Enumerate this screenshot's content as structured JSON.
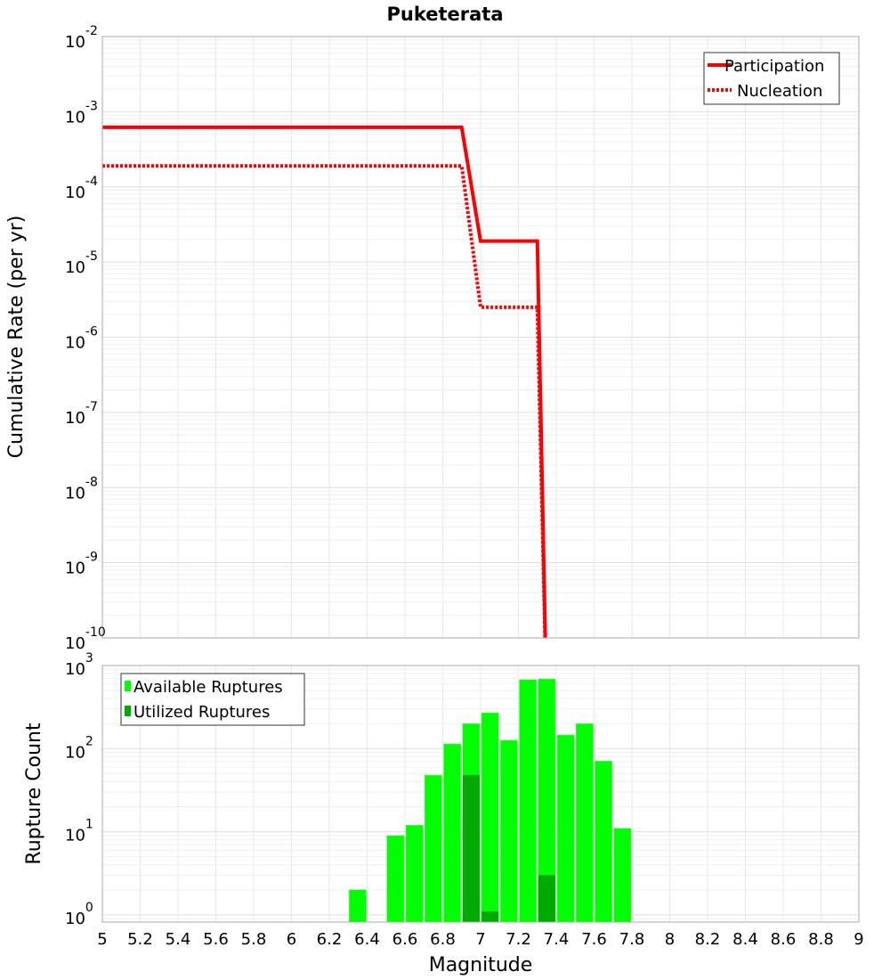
{
  "chart_data": [
    {
      "type": "line",
      "title": "Puketerata",
      "xlabel": "Magnitude",
      "ylabel": "Cumulative Rate (per yr)",
      "xlim": [
        5,
        9
      ],
      "ylim": [
        1e-10,
        0.01
      ],
      "yscale": "log",
      "ytick_exponents": [
        "-2",
        "-3",
        "-4",
        "-5",
        "-6",
        "-7",
        "-8",
        "-9",
        "-10"
      ],
      "grid": true,
      "legend_position": "top-right",
      "series": [
        {
          "name": "Participation",
          "color": "#ff0000",
          "style": "solid",
          "x": [
            5.0,
            6.9,
            7.0,
            7.3,
            7.35
          ],
          "y": [
            0.00062,
            0.00062,
            1.9e-05,
            1.9e-05,
            1e-11
          ]
        },
        {
          "name": "Nucleation",
          "color": "#ff0000",
          "style": "dotted",
          "x": [
            5.0,
            6.9,
            7.0,
            7.3,
            7.35
          ],
          "y": [
            0.00019,
            0.00019,
            2.5e-06,
            2.5e-06,
            1e-11
          ]
        }
      ]
    },
    {
      "type": "bar",
      "xlabel": "Magnitude",
      "ylabel": "Rupture Count",
      "xlim": [
        5,
        9
      ],
      "ylim": [
        0.8,
        1000
      ],
      "yscale": "log",
      "ytick_exponents": [
        "3",
        "2",
        "1",
        "0"
      ],
      "xticks": [
        "5",
        "5.2",
        "5.4",
        "5.6",
        "5.8",
        "6",
        "6.2",
        "6.4",
        "6.6",
        "6.8",
        "7",
        "7.2",
        "7.4",
        "7.6",
        "7.8",
        "8",
        "8.2",
        "8.4",
        "8.6",
        "8.8",
        "9"
      ],
      "bin_width": 0.1,
      "grid": true,
      "legend_position": "top-left",
      "series": [
        {
          "name": "Available Ruptures",
          "color": "#00ff00",
          "x": [
            6.35,
            6.55,
            6.65,
            6.75,
            6.85,
            6.95,
            7.05,
            7.15,
            7.25,
            7.35,
            7.45,
            7.55,
            7.65,
            7.75
          ],
          "values": [
            2,
            9,
            12,
            48,
            114,
            200,
            270,
            126,
            675,
            690,
            146,
            200,
            71,
            11
          ]
        },
        {
          "name": "Utilized Ruptures",
          "color": "#00aa00",
          "x": [
            6.95,
            7.05,
            7.35
          ],
          "values": [
            48,
            1.1,
            3
          ]
        }
      ]
    }
  ]
}
